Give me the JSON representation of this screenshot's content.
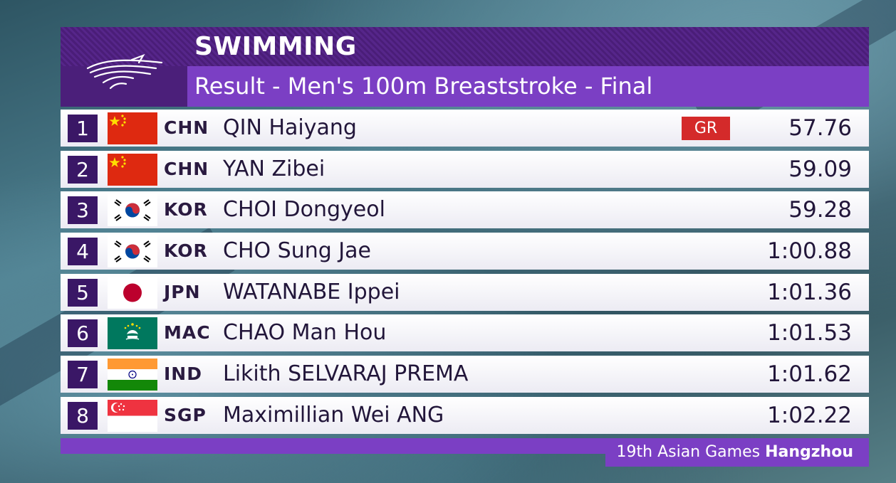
{
  "header": {
    "sport": "SWIMMING",
    "event": "Result - Men's 100m Breaststroke - Final"
  },
  "results": [
    {
      "rank": "1",
      "noc": "CHN",
      "name": "QIN Haiyang",
      "badge": "GR",
      "time": "57.76",
      "flag": "china-flag-icon"
    },
    {
      "rank": "2",
      "noc": "CHN",
      "name": "YAN Zibei",
      "badge": "",
      "time": "59.09",
      "flag": "china-flag-icon"
    },
    {
      "rank": "3",
      "noc": "KOR",
      "name": "CHOI Dongyeol",
      "badge": "",
      "time": "59.28",
      "flag": "korea-flag-icon"
    },
    {
      "rank": "4",
      "noc": "KOR",
      "name": "CHO Sung Jae",
      "badge": "",
      "time": "1:00.88",
      "flag": "korea-flag-icon"
    },
    {
      "rank": "5",
      "noc": "JPN",
      "name": "WATANABE Ippei",
      "badge": "",
      "time": "1:01.36",
      "flag": "japan-flag-icon"
    },
    {
      "rank": "6",
      "noc": "MAC",
      "name": "CHAO Man Hou",
      "badge": "",
      "time": "1:01.53",
      "flag": "macau-flag-icon"
    },
    {
      "rank": "7",
      "noc": "IND",
      "name": "Likith SELVARAJ PREMA",
      "badge": "",
      "time": "1:01.62",
      "flag": "india-flag-icon"
    },
    {
      "rank": "8",
      "noc": "SGP",
      "name": "Maximillian Wei ANG",
      "badge": "",
      "time": "1:02.22",
      "flag": "singapore-flag-icon"
    }
  ],
  "footer": {
    "games": "19th Asian Games",
    "city": "Hangzhou"
  },
  "colors": {
    "header_dark": "#4b1f7a",
    "accent_purple": "#7b3fc4",
    "rank_box": "#3a1766",
    "record_badge": "#d42a2a"
  }
}
